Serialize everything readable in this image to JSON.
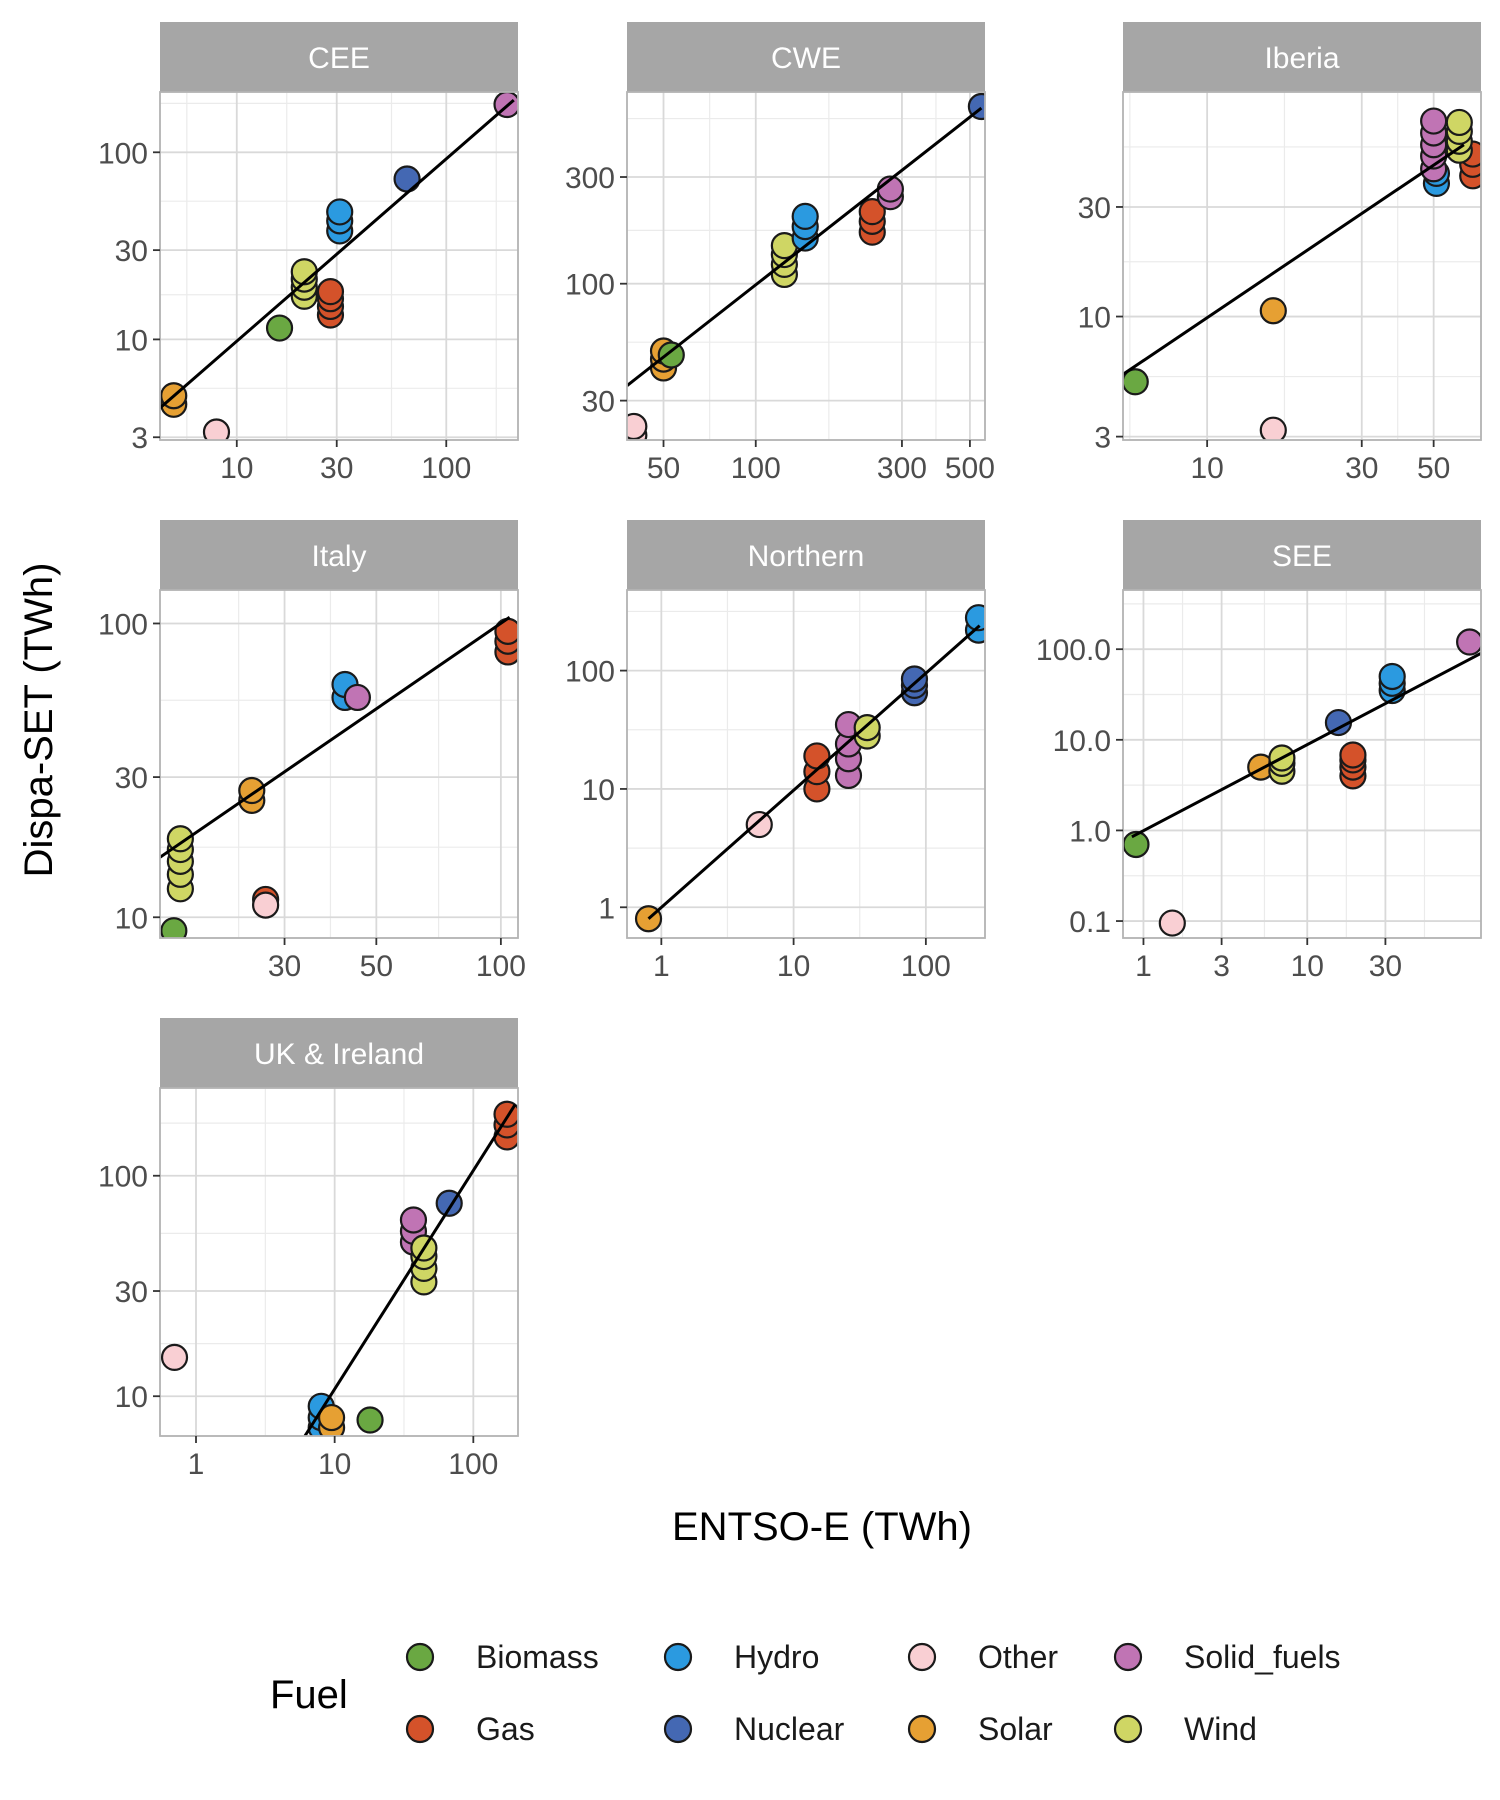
{
  "chart_data": {
    "type": "scatter",
    "xlabel": "ENTSO-E (TWh)",
    "ylabel": "Dispa-SET (TWh)",
    "x_scale": "log",
    "y_scale": "log",
    "grid": true,
    "legend_placement": "bottom",
    "legend": {
      "title": "Fuel",
      "entries": [
        {
          "name": "Biomass",
          "color": "#6aa842"
        },
        {
          "name": "Gas",
          "color": "#d4522a"
        },
        {
          "name": "Hydro",
          "color": "#2b9ae0"
        },
        {
          "name": "Nuclear",
          "color": "#4468b3"
        },
        {
          "name": "Other",
          "color": "#f9cfd3"
        },
        {
          "name": "Solar",
          "color": "#e6a033"
        },
        {
          "name": "Solid_fuels",
          "color": "#c074b4"
        },
        {
          "name": "Wind",
          "color": "#cfd664"
        }
      ]
    },
    "panels": [
      {
        "title": "CEE",
        "xlim": [
          4.3,
          220
        ],
        "ylim": [
          2.9,
          210
        ],
        "x_ticks": [
          {
            "value": 10,
            "label": "10"
          },
          {
            "value": 30,
            "label": "30"
          },
          {
            "value": 100,
            "label": "100"
          }
        ],
        "y_ticks": [
          {
            "value": 3,
            "label": "3"
          },
          {
            "value": 10,
            "label": "10"
          },
          {
            "value": 30,
            "label": "30"
          },
          {
            "value": 100,
            "label": "100"
          }
        ],
        "fit_line": [
          [
            4.3,
            4.3
          ],
          [
            210,
            190
          ]
        ],
        "points": [
          {
            "fuel": "Solar",
            "x": 5,
            "y": 4.5
          },
          {
            "fuel": "Solar",
            "x": 5,
            "y": 5
          },
          {
            "fuel": "Other",
            "x": 8,
            "y": 3.2
          },
          {
            "fuel": "Biomass",
            "x": 16,
            "y": 11.5
          },
          {
            "fuel": "Wind",
            "x": 21,
            "y": 17
          },
          {
            "fuel": "Wind",
            "x": 21,
            "y": 19
          },
          {
            "fuel": "Wind",
            "x": 21,
            "y": 21
          },
          {
            "fuel": "Wind",
            "x": 21,
            "y": 23
          },
          {
            "fuel": "Gas",
            "x": 28,
            "y": 13.5
          },
          {
            "fuel": "Gas",
            "x": 28,
            "y": 15
          },
          {
            "fuel": "Gas",
            "x": 28,
            "y": 16.5
          },
          {
            "fuel": "Gas",
            "x": 28,
            "y": 18
          },
          {
            "fuel": "Hydro",
            "x": 31,
            "y": 38
          },
          {
            "fuel": "Hydro",
            "x": 31,
            "y": 43
          },
          {
            "fuel": "Hydro",
            "x": 31,
            "y": 48
          },
          {
            "fuel": "Nuclear",
            "x": 65,
            "y": 72
          },
          {
            "fuel": "Solid_fuels",
            "x": 195,
            "y": 180
          }
        ]
      },
      {
        "title": "CWE",
        "xlim": [
          38,
          560
        ],
        "ylim": [
          20,
          720
        ],
        "x_ticks": [
          {
            "value": 50,
            "label": "50"
          },
          {
            "value": 100,
            "label": "100"
          },
          {
            "value": 300,
            "label": "300"
          },
          {
            "value": 500,
            "label": "500"
          }
        ],
        "y_ticks": [
          {
            "value": 30,
            "label": "30"
          },
          {
            "value": 100,
            "label": "100"
          },
          {
            "value": 300,
            "label": "300"
          }
        ],
        "fit_line": [
          [
            38,
            35
          ],
          [
            545,
            610
          ]
        ],
        "points": [
          {
            "fuel": "Other",
            "x": 40,
            "y": 21
          },
          {
            "fuel": "Other",
            "x": 40,
            "y": 23
          },
          {
            "fuel": "Solar",
            "x": 50,
            "y": 42
          },
          {
            "fuel": "Solar",
            "x": 50,
            "y": 46
          },
          {
            "fuel": "Solar",
            "x": 50,
            "y": 50
          },
          {
            "fuel": "Biomass",
            "x": 53,
            "y": 48
          },
          {
            "fuel": "Wind",
            "x": 124,
            "y": 110
          },
          {
            "fuel": "Wind",
            "x": 124,
            "y": 122
          },
          {
            "fuel": "Wind",
            "x": 124,
            "y": 135
          },
          {
            "fuel": "Wind",
            "x": 124,
            "y": 148
          },
          {
            "fuel": "Hydro",
            "x": 145,
            "y": 160
          },
          {
            "fuel": "Hydro",
            "x": 145,
            "y": 180
          },
          {
            "fuel": "Hydro",
            "x": 145,
            "y": 200
          },
          {
            "fuel": "Gas",
            "x": 240,
            "y": 170
          },
          {
            "fuel": "Gas",
            "x": 240,
            "y": 190
          },
          {
            "fuel": "Gas",
            "x": 240,
            "y": 210
          },
          {
            "fuel": "Solid_fuels",
            "x": 275,
            "y": 245
          },
          {
            "fuel": "Solid_fuels",
            "x": 275,
            "y": 265
          },
          {
            "fuel": "Nuclear",
            "x": 545,
            "y": 620
          }
        ]
      },
      {
        "title": "Iberia",
        "xlim": [
          5.5,
          70
        ],
        "ylim": [
          2.9,
          95
        ],
        "x_ticks": [
          {
            "value": 10,
            "label": "10"
          },
          {
            "value": 30,
            "label": "30"
          },
          {
            "value": 50,
            "label": "50"
          }
        ],
        "y_ticks": [
          {
            "value": 3,
            "label": "3"
          },
          {
            "value": 10,
            "label": "10"
          },
          {
            "value": 30,
            "label": "30"
          }
        ],
        "fit_line": [
          [
            5.5,
            5.6
          ],
          [
            62,
            56
          ]
        ],
        "points": [
          {
            "fuel": "Biomass",
            "x": 6,
            "y": 5.2
          },
          {
            "fuel": "Other",
            "x": 16,
            "y": 3.2
          },
          {
            "fuel": "Solar",
            "x": 16,
            "y": 10.6
          },
          {
            "fuel": "Hydro",
            "x": 51,
            "y": 38
          },
          {
            "fuel": "Hydro",
            "x": 51,
            "y": 42
          },
          {
            "fuel": "Solid_fuels",
            "x": 50,
            "y": 44
          },
          {
            "fuel": "Solid_fuels",
            "x": 50,
            "y": 50
          },
          {
            "fuel": "Solid_fuels",
            "x": 50,
            "y": 56
          },
          {
            "fuel": "Solid_fuels",
            "x": 50,
            "y": 63
          },
          {
            "fuel": "Solid_fuels",
            "x": 50,
            "y": 71
          },
          {
            "fuel": "Gas",
            "x": 66,
            "y": 41
          },
          {
            "fuel": "Gas",
            "x": 66,
            "y": 46
          },
          {
            "fuel": "Gas",
            "x": 66,
            "y": 51
          },
          {
            "fuel": "Wind",
            "x": 60,
            "y": 53
          },
          {
            "fuel": "Wind",
            "x": 60,
            "y": 58
          },
          {
            "fuel": "Wind",
            "x": 60,
            "y": 64
          },
          {
            "fuel": "Wind",
            "x": 60,
            "y": 70
          }
        ]
      },
      {
        "title": "Italy",
        "xlim": [
          15,
          110
        ],
        "ylim": [
          8.5,
          130
        ],
        "x_ticks": [
          {
            "value": 30,
            "label": "30"
          },
          {
            "value": 50,
            "label": "50"
          },
          {
            "value": 100,
            "label": "100"
          }
        ],
        "y_ticks": [
          {
            "value": 10,
            "label": "10"
          },
          {
            "value": 30,
            "label": "30"
          },
          {
            "value": 100,
            "label": "100"
          }
        ],
        "fit_line": [
          [
            15,
            16
          ],
          [
            105,
            105
          ]
        ],
        "points": [
          {
            "fuel": "Biomass",
            "x": 16.2,
            "y": 9
          },
          {
            "fuel": "Wind",
            "x": 16.8,
            "y": 12.5
          },
          {
            "fuel": "Wind",
            "x": 16.8,
            "y": 14
          },
          {
            "fuel": "Wind",
            "x": 16.8,
            "y": 15.5
          },
          {
            "fuel": "Wind",
            "x": 16.8,
            "y": 17
          },
          {
            "fuel": "Wind",
            "x": 16.8,
            "y": 18.5
          },
          {
            "fuel": "Solar",
            "x": 25,
            "y": 25
          },
          {
            "fuel": "Solar",
            "x": 25,
            "y": 27
          },
          {
            "fuel": "Gas",
            "x": 27,
            "y": 11.5
          },
          {
            "fuel": "Other",
            "x": 27,
            "y": 11
          },
          {
            "fuel": "Hydro",
            "x": 42,
            "y": 56
          },
          {
            "fuel": "Hydro",
            "x": 42,
            "y": 62
          },
          {
            "fuel": "Solid_fuels",
            "x": 45,
            "y": 56
          },
          {
            "fuel": "Gas",
            "x": 104,
            "y": 80
          },
          {
            "fuel": "Gas",
            "x": 104,
            "y": 87
          },
          {
            "fuel": "Gas",
            "x": 104,
            "y": 94
          }
        ]
      },
      {
        "title": "Northern",
        "xlim": [
          0.55,
          280
        ],
        "ylim": [
          0.55,
          480
        ],
        "x_ticks": [
          {
            "value": 1,
            "label": "1"
          },
          {
            "value": 10,
            "label": "10"
          },
          {
            "value": 100,
            "label": "100"
          }
        ],
        "y_ticks": [
          {
            "value": 1,
            "label": "1"
          },
          {
            "value": 10,
            "label": "10"
          },
          {
            "value": 100,
            "label": "100"
          }
        ],
        "fit_line": [
          [
            0.8,
            0.8
          ],
          [
            255,
            240
          ]
        ],
        "points": [
          {
            "fuel": "Solar",
            "x": 0.8,
            "y": 0.8
          },
          {
            "fuel": "Other",
            "x": 5.5,
            "y": 5
          },
          {
            "fuel": "Gas",
            "x": 15,
            "y": 10
          },
          {
            "fuel": "Gas",
            "x": 15,
            "y": 14
          },
          {
            "fuel": "Gas",
            "x": 15,
            "y": 19
          },
          {
            "fuel": "Solid_fuels",
            "x": 26,
            "y": 13
          },
          {
            "fuel": "Solid_fuels",
            "x": 26,
            "y": 18
          },
          {
            "fuel": "Solid_fuels",
            "x": 26,
            "y": 24
          },
          {
            "fuel": "Solid_fuels",
            "x": 26,
            "y": 35
          },
          {
            "fuel": "Wind",
            "x": 36,
            "y": 28
          },
          {
            "fuel": "Wind",
            "x": 36,
            "y": 33
          },
          {
            "fuel": "Nuclear",
            "x": 82,
            "y": 65
          },
          {
            "fuel": "Nuclear",
            "x": 82,
            "y": 75
          },
          {
            "fuel": "Nuclear",
            "x": 82,
            "y": 85
          },
          {
            "fuel": "Hydro",
            "x": 250,
            "y": 220
          },
          {
            "fuel": "Hydro",
            "x": 250,
            "y": 280
          }
        ]
      },
      {
        "title": "SEE",
        "xlim": [
          0.75,
          115
        ],
        "ylim": [
          0.065,
          450
        ],
        "x_ticks": [
          {
            "value": 1,
            "label": "1"
          },
          {
            "value": 3,
            "label": "3"
          },
          {
            "value": 10,
            "label": "10"
          },
          {
            "value": 30,
            "label": "30"
          }
        ],
        "y_ticks": [
          {
            "value": 0.1,
            "label": "0.1"
          },
          {
            "value": 1,
            "label": "1.0"
          },
          {
            "value": 10,
            "label": "10.0"
          },
          {
            "value": 100,
            "label": "100.0"
          }
        ],
        "fit_line": [
          [
            0.85,
            0.85
          ],
          [
            115,
            90
          ]
        ],
        "points": [
          {
            "fuel": "Biomass",
            "x": 0.9,
            "y": 0.7
          },
          {
            "fuel": "Other",
            "x": 1.5,
            "y": 0.095
          },
          {
            "fuel": "Solar",
            "x": 5.2,
            "y": 5
          },
          {
            "fuel": "Wind",
            "x": 7,
            "y": 4.5
          },
          {
            "fuel": "Wind",
            "x": 7,
            "y": 5.5
          },
          {
            "fuel": "Wind",
            "x": 7,
            "y": 6.3
          },
          {
            "fuel": "Nuclear",
            "x": 15.5,
            "y": 15.5
          },
          {
            "fuel": "Gas",
            "x": 19,
            "y": 4
          },
          {
            "fuel": "Gas",
            "x": 19,
            "y": 5
          },
          {
            "fuel": "Gas",
            "x": 19,
            "y": 6
          },
          {
            "fuel": "Gas",
            "x": 19,
            "y": 6.8
          },
          {
            "fuel": "Hydro",
            "x": 33,
            "y": 35
          },
          {
            "fuel": "Hydro",
            "x": 33,
            "y": 42
          },
          {
            "fuel": "Hydro",
            "x": 33,
            "y": 50
          },
          {
            "fuel": "Solid_fuels",
            "x": 98,
            "y": 120
          }
        ]
      },
      {
        "title": "UK & Ireland",
        "xlim": [
          0.55,
          210
        ],
        "ylim": [
          6.6,
          250
        ],
        "x_ticks": [
          {
            "value": 1,
            "label": "1"
          },
          {
            "value": 10,
            "label": "10"
          },
          {
            "value": 100,
            "label": "100"
          }
        ],
        "y_ticks": [
          {
            "value": 10,
            "label": "10"
          },
          {
            "value": 30,
            "label": "30"
          },
          {
            "value": 100,
            "label": "100"
          }
        ],
        "fit_line": [
          [
            6.1,
            6.6
          ],
          [
            200,
            210
          ]
        ],
        "points": [
          {
            "fuel": "Other",
            "x": 0.7,
            "y": 15
          },
          {
            "fuel": "Hydro",
            "x": 8,
            "y": 7.2
          },
          {
            "fuel": "Hydro",
            "x": 8,
            "y": 8
          },
          {
            "fuel": "Hydro",
            "x": 8,
            "y": 9
          },
          {
            "fuel": "Solar",
            "x": 9.5,
            "y": 7.2
          },
          {
            "fuel": "Solar",
            "x": 9.5,
            "y": 8
          },
          {
            "fuel": "Biomass",
            "x": 18,
            "y": 7.8
          },
          {
            "fuel": "Solid_fuels",
            "x": 37,
            "y": 50
          },
          {
            "fuel": "Solid_fuels",
            "x": 37,
            "y": 56
          },
          {
            "fuel": "Solid_fuels",
            "x": 37,
            "y": 63
          },
          {
            "fuel": "Wind",
            "x": 44,
            "y": 33
          },
          {
            "fuel": "Wind",
            "x": 44,
            "y": 38
          },
          {
            "fuel": "Wind",
            "x": 44,
            "y": 43
          },
          {
            "fuel": "Wind",
            "x": 44,
            "y": 47
          },
          {
            "fuel": "Nuclear",
            "x": 67,
            "y": 75
          },
          {
            "fuel": "Gas",
            "x": 175,
            "y": 150
          },
          {
            "fuel": "Gas",
            "x": 175,
            "y": 170
          },
          {
            "fuel": "Gas",
            "x": 175,
            "y": 190
          }
        ]
      }
    ]
  }
}
